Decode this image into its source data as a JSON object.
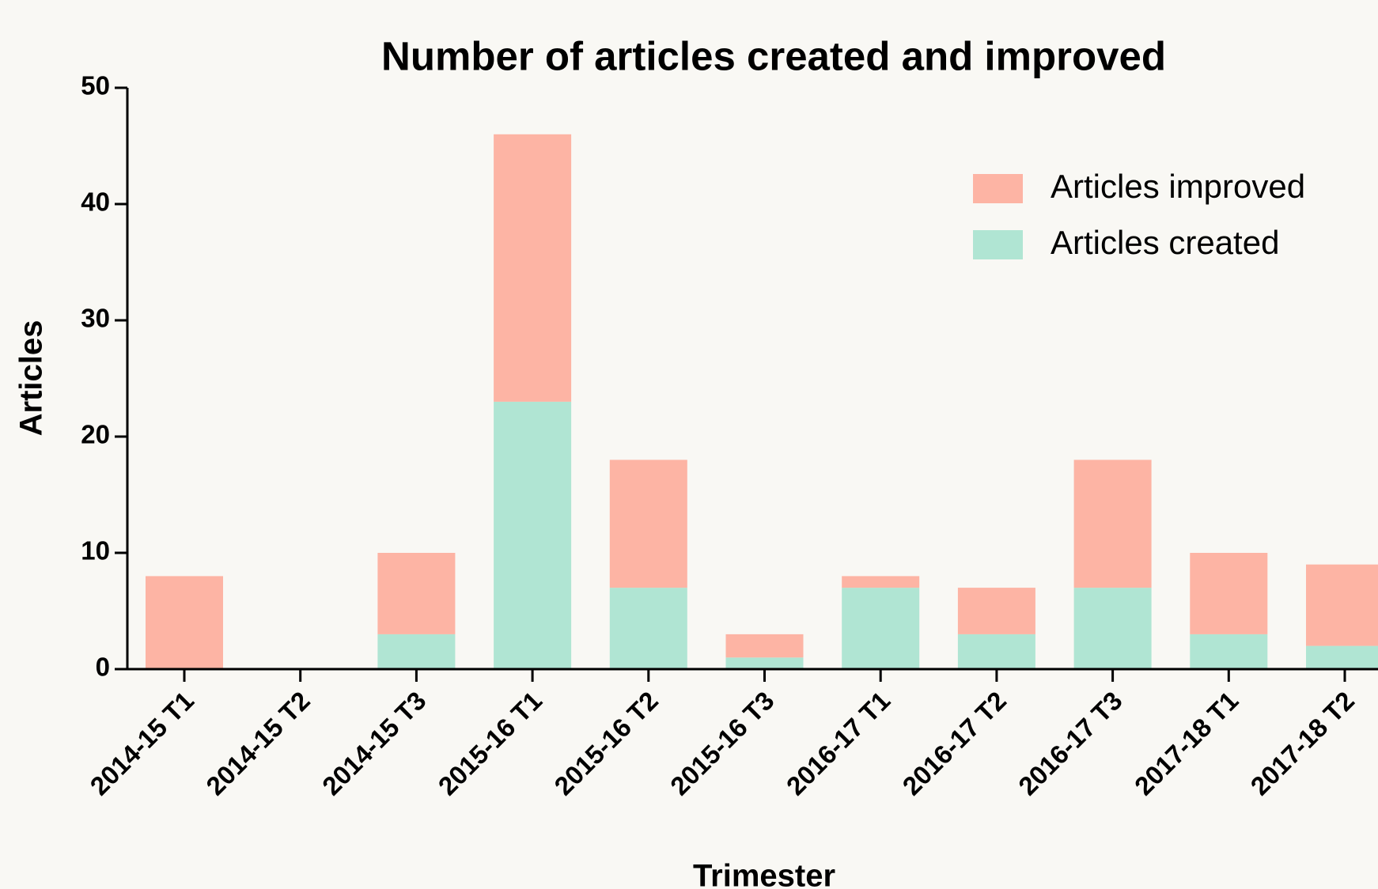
{
  "chart_data": {
    "type": "bar",
    "stacked": true,
    "title": "Number of articles created and improved",
    "x_label": "Trimester",
    "y_label": "Articles",
    "categories": [
      "2014-15 T1",
      "2014-15 T2",
      "2014-15 T3",
      "2015-16 T1",
      "2015-16 T2",
      "2015-16 T3",
      "2016-17 T1",
      "2016-17 T2",
      "2016-17 T3",
      "2017-18 T1",
      "2017-18 T2"
    ],
    "series": [
      {
        "name": "Articles created",
        "color": "#b0e5d3",
        "values": [
          0,
          0,
          3,
          23,
          7,
          1,
          7,
          3,
          7,
          3,
          2
        ]
      },
      {
        "name": "Articles improved",
        "color": "#fdb4a4",
        "values": [
          8,
          0,
          7,
          23,
          11,
          2,
          1,
          4,
          11,
          7,
          7
        ]
      }
    ],
    "ylim": [
      0,
      50
    ],
    "yticks": [
      0,
      10,
      20,
      30,
      40,
      50
    ],
    "legend": "upper right",
    "grid": false
  }
}
